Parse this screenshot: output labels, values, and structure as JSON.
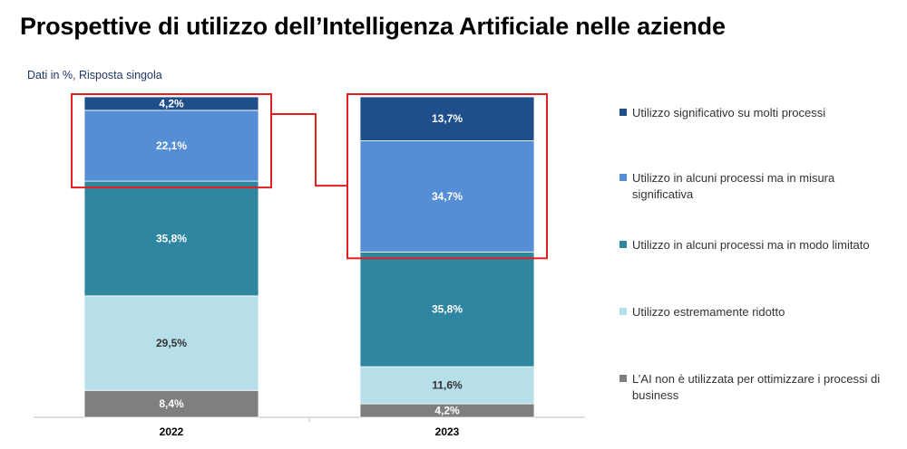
{
  "chart_data": {
    "type": "bar",
    "stacked": true,
    "title": "Prospettive di utilizzo dell’Intelligenza Artificiale nelle aziende",
    "subtitle": "Dati in %, Risposta singola",
    "categories": [
      "2022",
      "2023"
    ],
    "series": [
      {
        "name": "L’AI non è utilizzata per ottimizzare i processi di business",
        "values": [
          8.4,
          4.2
        ],
        "labels": [
          "8,4%",
          "4,2%"
        ],
        "color": "#7f7f7f",
        "label_color": "#ffffff"
      },
      {
        "name": "Utilizzo estremamente ridotto",
        "values": [
          29.5,
          11.6
        ],
        "labels": [
          "29,5%",
          "11,6%"
        ],
        "color": "#b7dfe9",
        "label_color": "#333333"
      },
      {
        "name": "Utilizzo in alcuni processi ma in modo limitato",
        "values": [
          35.8,
          35.8
        ],
        "labels": [
          "35,8%",
          "35,8%"
        ],
        "color": "#2e86a0",
        "label_color": "#ffffff"
      },
      {
        "name": "Utilizzo in alcuni processi ma in misura significativa",
        "values": [
          22.1,
          34.7
        ],
        "labels": [
          "22,1%",
          "34,7%"
        ],
        "color": "#558ed5",
        "label_color": "#ffffff"
      },
      {
        "name": "Utilizzo significativo su molti processi",
        "values": [
          4.2,
          13.7
        ],
        "labels": [
          "4,2%",
          "13,7%"
        ],
        "color": "#1f4e8c",
        "label_color": "#ffffff"
      }
    ],
    "ylim": [
      0,
      100
    ],
    "grid": false,
    "legend_position": "right",
    "highlight": {
      "series": [
        3,
        4
      ],
      "color": "#e02020",
      "connector": true
    }
  }
}
